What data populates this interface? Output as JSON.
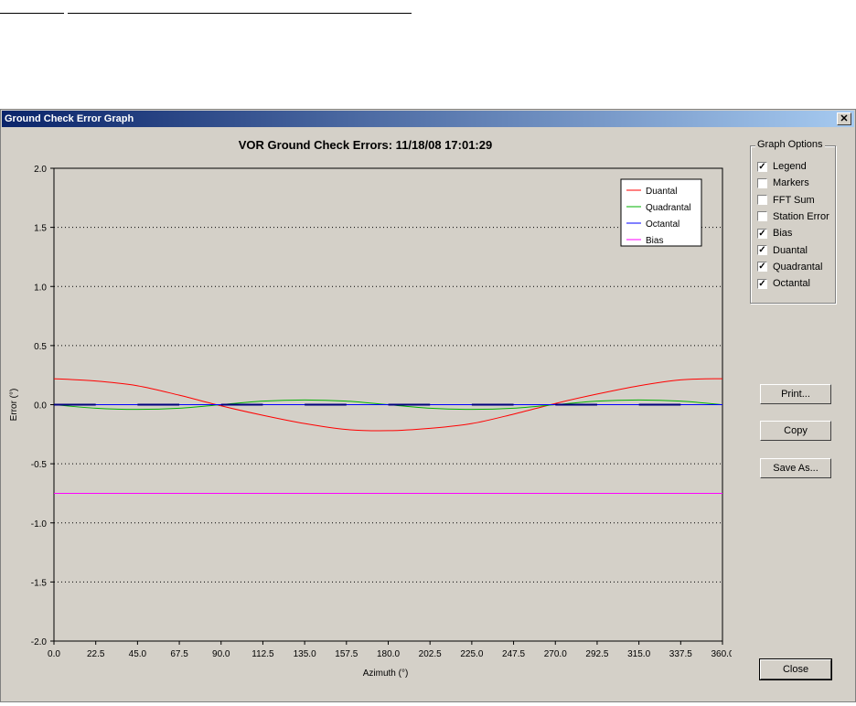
{
  "window": {
    "title": "Ground Check Error Graph",
    "close_glyph": "✕"
  },
  "chart_data": {
    "type": "line",
    "title": "VOR Ground Check Errors:  11/18/08 17:01:29",
    "xlabel": "Azimuth (°)",
    "ylabel": "Error (°)",
    "xlim": [
      0,
      360
    ],
    "ylim": [
      -2.0,
      2.0
    ],
    "x_ticks": [
      "0.0",
      "22.5",
      "45.0",
      "67.5",
      "90.0",
      "112.5",
      "135.0",
      "157.5",
      "180.0",
      "202.5",
      "225.0",
      "247.5",
      "270.0",
      "292.5",
      "315.0",
      "337.5",
      "360.0"
    ],
    "y_ticks": [
      "2.0",
      "1.5",
      "1.0",
      "0.5",
      "0.0",
      "-0.5",
      "-1.0",
      "-1.5",
      "-2.0"
    ],
    "grid": "horizontal-dotted",
    "legend_position": "top-right",
    "x": [
      0,
      22.5,
      45,
      67.5,
      90,
      112.5,
      135,
      157.5,
      180,
      202.5,
      225,
      247.5,
      270,
      292.5,
      315,
      337.5,
      360
    ],
    "series": [
      {
        "name": "Duantal",
        "color": "#ff0000",
        "values": [
          0.22,
          0.2,
          0.16,
          0.08,
          -0.01,
          -0.09,
          -0.16,
          -0.21,
          -0.22,
          -0.2,
          -0.16,
          -0.08,
          0.01,
          0.09,
          0.16,
          0.21,
          0.22
        ]
      },
      {
        "name": "Quadrantal",
        "color": "#00b000",
        "values": [
          0.0,
          -0.03,
          -0.04,
          -0.03,
          0.0,
          0.03,
          0.04,
          0.03,
          0.0,
          -0.03,
          -0.04,
          -0.03,
          0.0,
          0.03,
          0.04,
          0.03,
          0.0
        ]
      },
      {
        "name": "Octantal",
        "color": "#0000ff",
        "values": [
          0.0,
          0.0,
          0.0,
          0.0,
          0.0,
          0.0,
          0.0,
          0.0,
          0.0,
          0.0,
          0.0,
          0.0,
          0.0,
          0.0,
          0.0,
          0.0,
          0.0
        ]
      },
      {
        "name": "Bias",
        "color": "#ff00ff",
        "values": [
          -0.75,
          -0.75,
          -0.75,
          -0.75,
          -0.75,
          -0.75,
          -0.75,
          -0.75,
          -0.75,
          -0.75,
          -0.75,
          -0.75,
          -0.75,
          -0.75,
          -0.75,
          -0.75,
          -0.75
        ]
      }
    ]
  },
  "options": {
    "title": "Graph Options",
    "items": [
      {
        "label": "Legend",
        "checked": true
      },
      {
        "label": "Markers",
        "checked": false
      },
      {
        "label": "FFT Sum",
        "checked": false
      },
      {
        "label": "Station Error",
        "checked": false
      },
      {
        "label": "Bias",
        "checked": true
      },
      {
        "label": "Duantal",
        "checked": true
      },
      {
        "label": "Quadrantal",
        "checked": true
      },
      {
        "label": "Octantal",
        "checked": true
      }
    ]
  },
  "buttons": {
    "print": "Print...",
    "copy": "Copy",
    "save_as": "Save As...",
    "close": "Close"
  }
}
